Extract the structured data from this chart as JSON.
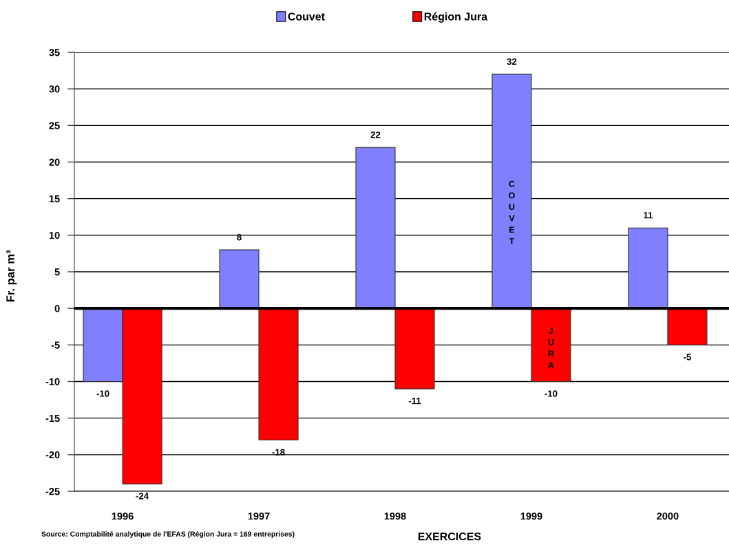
{
  "chart_data": {
    "type": "bar",
    "xlabel": "EXERCICES",
    "ylabel": "Fr. par m³",
    "categories": [
      "1996",
      "1997",
      "1998",
      "1999",
      "2000"
    ],
    "series": [
      {
        "name": "Couvet",
        "color": "#8080ff",
        "values": [
          -10,
          8,
          22,
          32,
          11
        ]
      },
      {
        "name": "Région Jura",
        "color": "#ff0000",
        "values": [
          -24,
          -18,
          -11,
          -10,
          -5
        ]
      }
    ],
    "ylim": [
      -25,
      35
    ],
    "yticks": [
      -25,
      -20,
      -15,
      -10,
      -5,
      0,
      5,
      10,
      15,
      20,
      25,
      30,
      35
    ],
    "grid": "y",
    "legend": "top",
    "data_labels": true,
    "ref_lines": [
      {
        "axis": "y",
        "value": 0,
        "color": "#000000"
      }
    ],
    "annotations": [
      {
        "text": "COUVET",
        "x": "1999",
        "y": 13
      },
      {
        "text": "JURA",
        "x": "1999",
        "y": -5.5
      },
      "Source: Comptabilité analytique de l'EFAS (Région Jura = 169 entreprises)"
    ]
  }
}
